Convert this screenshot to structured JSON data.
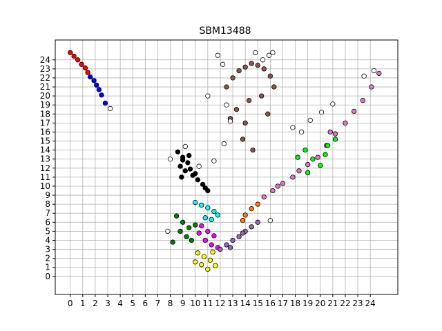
{
  "chart_data": {
    "type": "scatter",
    "title": "SBM13488",
    "xlabel": "",
    "ylabel": "",
    "xlim": [
      -1.2,
      26.2
    ],
    "ylim": [
      -2.0,
      26.2
    ],
    "xticks": [
      0,
      1,
      2,
      3,
      4,
      5,
      6,
      7,
      8,
      9,
      10,
      11,
      12,
      13,
      14,
      15,
      16,
      17,
      18,
      19,
      20,
      21,
      22,
      23,
      24
    ],
    "yticks": [
      0,
      1,
      2,
      3,
      4,
      5,
      6,
      7,
      8,
      9,
      10,
      11,
      12,
      13,
      14,
      15,
      16,
      17,
      18,
      19,
      20,
      21,
      22,
      23,
      24
    ],
    "grid": true,
    "legend": "none",
    "marker_radius": 0.18,
    "clusters": [
      {
        "color": "#ff0000",
        "x": [
          0.0,
          0.3,
          0.6,
          0.9,
          1.2,
          1.4
        ],
        "y": [
          24.8,
          24.4,
          24.0,
          23.5,
          23.1,
          22.6
        ]
      },
      {
        "color": "#0000ff",
        "x": [
          1.6,
          1.9,
          2.1,
          2.3,
          2.5,
          2.8
        ],
        "y": [
          22.1,
          21.7,
          21.2,
          20.7,
          20.1,
          19.2
        ]
      },
      {
        "color": "#000000",
        "x": [
          8.6,
          9.0,
          9.4,
          8.8,
          9.2,
          9.8,
          10.2,
          10.6,
          9.6,
          10.0,
          9.0,
          10.8,
          11.0,
          9.5,
          8.9
        ],
        "y": [
          13.8,
          13.2,
          12.6,
          12.2,
          11.7,
          11.2,
          10.7,
          10.2,
          11.9,
          11.4,
          12.9,
          9.8,
          9.5,
          13.4,
          11.0
        ]
      },
      {
        "color": "#00ffff",
        "x": [
          10.0,
          10.5,
          11.0,
          11.5,
          11.8,
          10.8,
          11.3
        ],
        "y": [
          8.2,
          7.9,
          7.6,
          7.2,
          6.8,
          6.5,
          6.3
        ]
      },
      {
        "color": "#008000",
        "x": [
          8.5,
          9.0,
          9.5,
          8.8,
          9.3,
          8.2,
          10.0,
          9.7
        ],
        "y": [
          6.7,
          6.0,
          5.4,
          5.0,
          4.4,
          3.8,
          5.7,
          4.0
        ]
      },
      {
        "color": "#ff00ff",
        "x": [
          10.5,
          11.0,
          11.5,
          10.8,
          11.3,
          11.8,
          10.3
        ],
        "y": [
          5.6,
          5.0,
          4.5,
          4.0,
          3.5,
          3.2,
          4.8
        ]
      },
      {
        "color": "#ffff00",
        "x": [
          10.2,
          10.7,
          11.2,
          10.5,
          11.0,
          11.6,
          10.0,
          11.4
        ],
        "y": [
          2.6,
          2.2,
          1.8,
          1.3,
          0.8,
          1.2,
          1.6,
          2.7
        ]
      },
      {
        "color": "#9467bd",
        "x": [
          12.0,
          12.5,
          13.0,
          13.5,
          14.0,
          14.5,
          15.0,
          12.8,
          13.8
        ],
        "y": [
          3.0,
          3.5,
          4.0,
          4.4,
          5.0,
          5.5,
          6.0,
          3.2,
          4.8
        ]
      },
      {
        "color": "#ff7f0e",
        "x": [
          14.0,
          14.5,
          15.0,
          13.8
        ],
        "y": [
          6.8,
          7.5,
          8.0,
          6.2
        ]
      },
      {
        "color": "#e377c2",
        "x": [
          15.5,
          16.2,
          17.0,
          17.8,
          18.3,
          19.0,
          19.8,
          20.5,
          21.2,
          22.0,
          22.7,
          23.4,
          24.1,
          24.7,
          16.6,
          20.8
        ],
        "y": [
          8.8,
          9.5,
          10.3,
          11.0,
          11.7,
          12.4,
          13.2,
          14.5,
          15.8,
          17.0,
          18.3,
          19.5,
          21.0,
          22.5,
          10.0,
          16.0
        ]
      },
      {
        "color": "#00ff00",
        "x": [
          18.2,
          18.8,
          19.4,
          20.0,
          20.6,
          21.2,
          19.0,
          20.4
        ],
        "y": [
          13.2,
          14.0,
          13.0,
          12.3,
          14.5,
          15.2,
          11.5,
          13.5
        ]
      },
      {
        "color": "#8c564b",
        "x": [
          12.5,
          13.0,
          13.5,
          14.0,
          14.5,
          15.0,
          15.5,
          16.0,
          16.3,
          13.3,
          14.3,
          15.3,
          14.0,
          13.8,
          14.6,
          15.8,
          12.8
        ],
        "y": [
          21.0,
          22.0,
          22.8,
          23.2,
          23.6,
          23.4,
          23.0,
          22.2,
          21.0,
          18.5,
          19.5,
          20.0,
          17.0,
          15.2,
          14.0,
          18.0,
          17.5
        ]
      },
      {
        "color": "#ffffff",
        "x": [
          11.8,
          12.2,
          14.8,
          15.4,
          15.9,
          16.2,
          11.0,
          12.5,
          12.8,
          3.2,
          10.3,
          17.8,
          18.5,
          19.2,
          20.1,
          21.0,
          23.5,
          24.3,
          16.0,
          8.0,
          7.8,
          9.2,
          11.5,
          12.3
        ],
        "y": [
          24.5,
          23.5,
          24.8,
          24.0,
          24.5,
          24.8,
          20.0,
          19.0,
          17.2,
          18.6,
          12.2,
          16.5,
          16.0,
          17.3,
          18.2,
          19.1,
          22.2,
          22.8,
          6.2,
          13.0,
          5.0,
          14.4,
          12.8,
          14.7
        ]
      }
    ]
  }
}
